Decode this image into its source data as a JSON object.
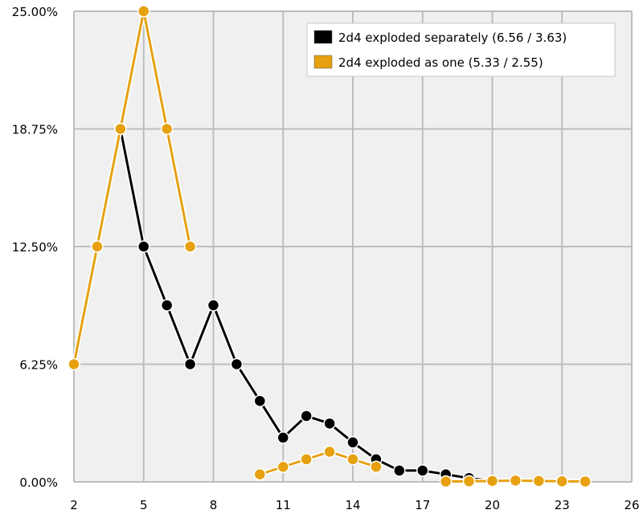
{
  "chart_data": {
    "type": "line",
    "xlim": [
      2,
      26
    ],
    "ylim": [
      0,
      25
    ],
    "x_ticks": [
      "2",
      "5",
      "8",
      "11",
      "14",
      "17",
      "20",
      "23",
      "26"
    ],
    "y_ticks": [
      "25.00%",
      "18.75%",
      "12.50%",
      "6.25%",
      "0.00%"
    ],
    "grid": true,
    "legend_position": "top-right",
    "background_color": "#f0f0f0",
    "grid_color": "#bdbdbd",
    "series": [
      {
        "name": "2d4 exploded separately (6.56 / 3.63)",
        "color": "#000000",
        "x": [
          2,
          3,
          4,
          5,
          6,
          7,
          8,
          9,
          10,
          11,
          12,
          13,
          14,
          15,
          16,
          17,
          18,
          19,
          20,
          21,
          22,
          23
        ],
        "y": [
          6.25,
          12.5,
          18.75,
          12.5,
          9.38,
          6.25,
          9.38,
          6.25,
          4.3,
          2.35,
          3.5,
          3.1,
          2.1,
          1.2,
          0.6,
          0.6,
          0.4,
          0.2,
          0.05,
          0.05,
          0.02,
          0.01
        ]
      },
      {
        "name": "2d4 exploded as one (5.33 / 2.55)",
        "color": "#e6a010",
        "segments": [
          {
            "x": [
              2,
              3,
              4,
              5,
              6,
              7
            ],
            "y": [
              6.25,
              12.5,
              18.75,
              25.0,
              18.75,
              12.5
            ]
          },
          {
            "x": [
              10,
              11,
              12,
              13,
              14,
              15
            ],
            "y": [
              0.4,
              0.8,
              1.2,
              1.6,
              1.2,
              0.8
            ]
          },
          {
            "x": [
              18,
              19,
              20,
              21,
              22,
              23,
              24
            ],
            "y": [
              0.02,
              0.03,
              0.05,
              0.07,
              0.05,
              0.03,
              0.02
            ]
          }
        ]
      }
    ]
  }
}
